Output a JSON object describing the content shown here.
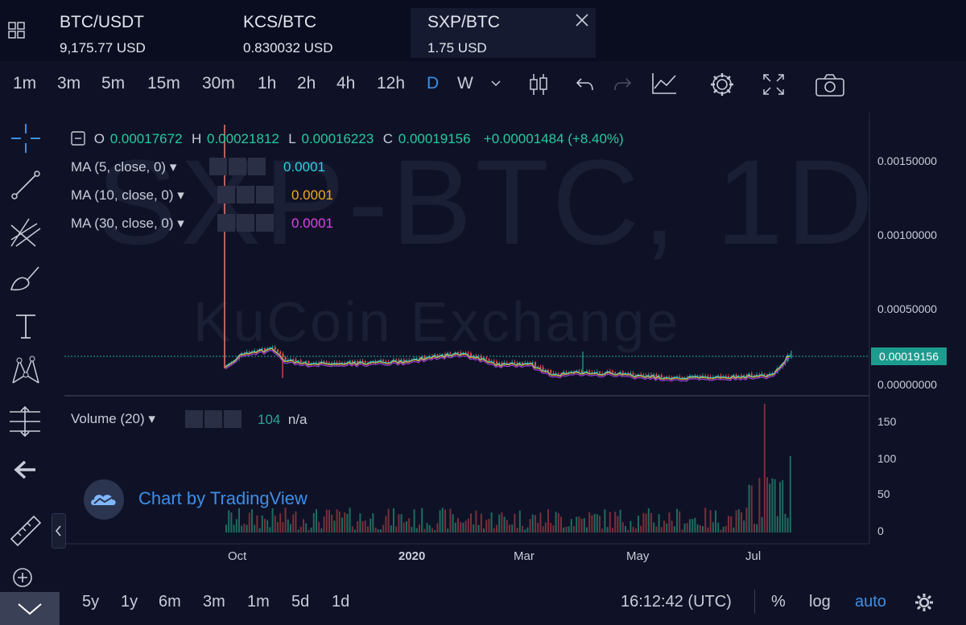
{
  "tabs": [
    {
      "symbol": "BTC/USDT",
      "price": "9,175.77 USD",
      "active": false
    },
    {
      "symbol": "KCS/BTC",
      "price": "0.830032 USD",
      "active": false
    },
    {
      "symbol": "SXP/BTC",
      "price": "1.75 USD",
      "active": true
    }
  ],
  "toolbar": {
    "timeframes": [
      "1m",
      "3m",
      "5m",
      "15m",
      "30m",
      "1h",
      "2h",
      "4h",
      "12h",
      "D",
      "W"
    ],
    "active_timeframe": "D",
    "icons": [
      "chevron-down-icon",
      "candles-icon",
      "undo-icon",
      "redo-icon",
      "indicators-icon",
      "gear-icon",
      "fullscreen-icon",
      "camera-icon"
    ]
  },
  "left_tools": [
    "crosshair-icon",
    "trendline-icon",
    "pitchfork-icon",
    "brush-icon",
    "text-icon",
    "pattern-icon",
    "measure-icon",
    "back-arrow-icon",
    "ruler-icon",
    "zoom-in-icon",
    "chevron-down-icon"
  ],
  "watermark": {
    "symbol": "SXP-BTC, 1D",
    "exchange": "KuCoin Exchange"
  },
  "legend": {
    "o_label": "O",
    "o": "0.00017672",
    "h_label": "H",
    "h": "0.00021812",
    "l_label": "L",
    "l": "0.00016223",
    "c_label": "C",
    "c": "0.00019156",
    "change": "+0.00001484 (+8.40%)",
    "ma": [
      {
        "label": "MA (5, close, 0)",
        "value": "0.0001",
        "color": "#2bd1e0"
      },
      {
        "label": "MA (10, close, 0)",
        "value": "0.0001",
        "color": "#f5a623"
      },
      {
        "label": "MA (30, close, 0)",
        "value": "0.0001",
        "color": "#e040e8"
      }
    ],
    "volume": {
      "label": "Volume (20)",
      "value": "104",
      "extra": "n/a"
    }
  },
  "yaxis": {
    "price": [
      "0.00150000",
      "0.00100000",
      "0.00050000",
      "0.00000000"
    ],
    "current": "0.00019156",
    "volume": [
      "150",
      "100",
      "50",
      "0"
    ]
  },
  "xaxis": [
    "Oct",
    "2020",
    "Mar",
    "May",
    "Jul"
  ],
  "branding": "Chart by TradingView",
  "bottom": {
    "ranges": [
      "5y",
      "1y",
      "6m",
      "3m",
      "1m",
      "5d",
      "1d"
    ],
    "time": "16:12:42 (UTC)",
    "pct": "%",
    "log": "log",
    "auto": "auto"
  },
  "colors": {
    "up": "#26a69a",
    "down": "#ef5350",
    "accent": "#3d8ee8",
    "bg": "#0f1226"
  }
}
